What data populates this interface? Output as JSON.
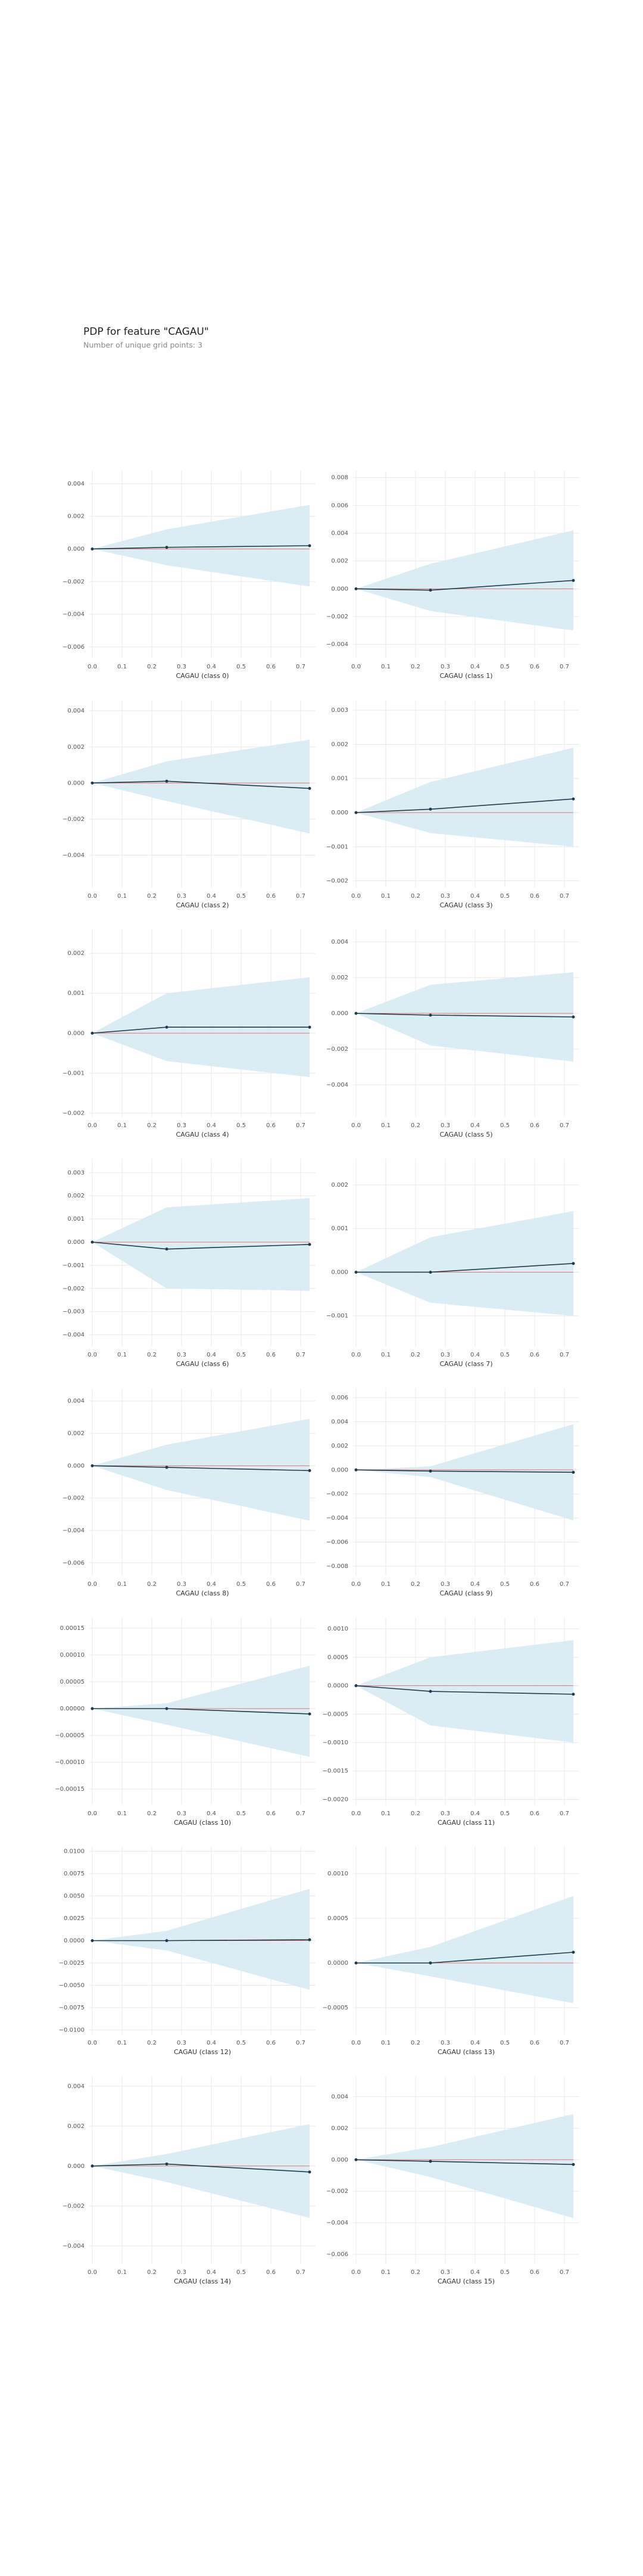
{
  "title": "PDP for feature \"CAGAU\"",
  "subtitle": "Number of unique grid points: 3",
  "style": {
    "line_color": "#1f3b4d",
    "band_color": "#d3eaf2",
    "ref_color": "#e8736c",
    "grid": true
  },
  "chart_data": [
    {
      "type": "pdp",
      "xlabel": "CAGAU (class 0)",
      "x": [
        0,
        0.25,
        0.73
      ],
      "values": [
        0,
        0.0001,
        0.0002
      ],
      "upper": [
        0,
        0.0012,
        0.0027
      ],
      "lower": [
        0,
        -0.001,
        -0.0023
      ],
      "hline": 0,
      "xlim": [
        -0.01,
        0.75
      ],
      "xticks": [
        {
          "value": 0,
          "label": "0.0"
        },
        0.1,
        0.2,
        0.3,
        0.4,
        0.5,
        0.6,
        0.7
      ],
      "ylim": [
        -0.0067,
        0.0048
      ],
      "yticks": [
        {
          "value": -0.006,
          "label": "−0.006"
        },
        {
          "value": -0.004,
          "label": "−0.004"
        },
        {
          "value": -0.002,
          "label": "−0.002"
        },
        {
          "value": 0,
          "label": "0.000"
        },
        {
          "value": 0.002,
          "label": "0.002"
        },
        {
          "value": 0.004,
          "label": "0.004"
        }
      ]
    },
    {
      "type": "pdp",
      "xlabel": "CAGAU (class 1)",
      "x": [
        0,
        0.25,
        0.73
      ],
      "values": [
        0,
        -0.0001,
        0.0006
      ],
      "upper": [
        0,
        0.0018,
        0.0042
      ],
      "lower": [
        0,
        -0.0016,
        -0.003
      ],
      "hline": 0,
      "xlim": [
        -0.01,
        0.75
      ],
      "xticks": [
        {
          "value": 0,
          "label": "0.0"
        },
        0.1,
        0.2,
        0.3,
        0.4,
        0.5,
        0.6,
        0.7
      ],
      "ylim": [
        -0.005,
        0.0085
      ],
      "yticks": [
        {
          "value": -0.004,
          "label": "−0.004"
        },
        {
          "value": -0.002,
          "label": "−0.002"
        },
        {
          "value": 0,
          "label": "0.000"
        },
        {
          "value": 0.002,
          "label": "0.002"
        },
        {
          "value": 0.004,
          "label": "0.004"
        },
        {
          "value": 0.006,
          "label": "0.006"
        },
        {
          "value": 0.008,
          "label": "0.008"
        }
      ]
    },
    {
      "type": "pdp",
      "xlabel": "CAGAU (class 2)",
      "x": [
        0,
        0.25,
        0.73
      ],
      "values": [
        0,
        0.0001,
        -0.0003
      ],
      "upper": [
        0,
        0.0012,
        0.0024
      ],
      "lower": [
        0,
        -0.001,
        -0.0028
      ],
      "hline": 0,
      "xlim": [
        -0.01,
        0.75
      ],
      "xticks": [
        {
          "value": 0,
          "label": "0.0"
        },
        0.1,
        0.2,
        0.3,
        0.4,
        0.5,
        0.6,
        0.7
      ],
      "ylim": [
        -0.0058,
        0.0046
      ],
      "yticks": [
        {
          "value": -0.004,
          "label": "−0.004"
        },
        {
          "value": -0.002,
          "label": "−0.002"
        },
        {
          "value": 0,
          "label": "0.000"
        },
        {
          "value": 0.002,
          "label": "0.002"
        },
        {
          "value": 0.004,
          "label": "0.004"
        }
      ]
    },
    {
      "type": "pdp",
      "xlabel": "CAGAU (class 3)",
      "x": [
        0,
        0.25,
        0.73
      ],
      "values": [
        0,
        0.0001,
        0.0004
      ],
      "upper": [
        0,
        0.0009,
        0.0019
      ],
      "lower": [
        0,
        -0.0006,
        -0.001
      ],
      "hline": 0,
      "xlim": [
        -0.01,
        0.75
      ],
      "xticks": [
        {
          "value": 0,
          "label": "0.0"
        },
        0.1,
        0.2,
        0.3,
        0.4,
        0.5,
        0.6,
        0.7
      ],
      "ylim": [
        -0.0022,
        0.0033
      ],
      "yticks": [
        {
          "value": -0.002,
          "label": "−0.002"
        },
        {
          "value": -0.001,
          "label": "−0.001"
        },
        {
          "value": 0,
          "label": "0.000"
        },
        {
          "value": 0.001,
          "label": "0.001"
        },
        {
          "value": 0.002,
          "label": "0.002"
        },
        {
          "value": 0.003,
          "label": "0.003"
        }
      ]
    },
    {
      "type": "pdp",
      "xlabel": "CAGAU (class 4)",
      "x": [
        0,
        0.25,
        0.73
      ],
      "values": [
        0,
        0.00015,
        0.00015
      ],
      "upper": [
        0,
        0.001,
        0.0014
      ],
      "lower": [
        0,
        -0.0007,
        -0.0011
      ],
      "hline": 0,
      "xlim": [
        -0.01,
        0.75
      ],
      "xticks": [
        {
          "value": 0,
          "label": "0.0"
        },
        0.1,
        0.2,
        0.3,
        0.4,
        0.5,
        0.6,
        0.7
      ],
      "ylim": [
        -0.0021,
        0.0026
      ],
      "yticks": [
        {
          "value": -0.002,
          "label": "−0.002"
        },
        {
          "value": -0.001,
          "label": "−0.001"
        },
        {
          "value": 0,
          "label": "0.000"
        },
        {
          "value": 0.001,
          "label": "0.001"
        },
        {
          "value": 0.002,
          "label": "0.002"
        }
      ]
    },
    {
      "type": "pdp",
      "xlabel": "CAGAU (class 5)",
      "x": [
        0,
        0.25,
        0.73
      ],
      "values": [
        0,
        -0.0001,
        -0.0002
      ],
      "upper": [
        0,
        0.0016,
        0.0023
      ],
      "lower": [
        0,
        -0.0018,
        -0.0027
      ],
      "hline": 0,
      "xlim": [
        -0.01,
        0.75
      ],
      "xticks": [
        {
          "value": 0,
          "label": "0.0"
        },
        0.1,
        0.2,
        0.3,
        0.4,
        0.5,
        0.6,
        0.7
      ],
      "ylim": [
        -0.0058,
        0.0047
      ],
      "yticks": [
        {
          "value": -0.004,
          "label": "−0.004"
        },
        {
          "value": -0.002,
          "label": "−0.002"
        },
        {
          "value": 0,
          "label": "0.000"
        },
        {
          "value": 0.002,
          "label": "0.002"
        },
        {
          "value": 0.004,
          "label": "0.004"
        }
      ]
    },
    {
      "type": "pdp",
      "xlabel": "CAGAU (class 6)",
      "x": [
        0,
        0.25,
        0.73
      ],
      "values": [
        0,
        -0.0003,
        -0.0001
      ],
      "upper": [
        0,
        0.0015,
        0.0019
      ],
      "lower": [
        0,
        -0.002,
        -0.0021
      ],
      "hline": 0,
      "xlim": [
        -0.01,
        0.75
      ],
      "xticks": [
        {
          "value": 0,
          "label": "0.0"
        },
        0.1,
        0.2,
        0.3,
        0.4,
        0.5,
        0.6,
        0.7
      ],
      "ylim": [
        -0.0045,
        0.0036
      ],
      "yticks": [
        {
          "value": -0.004,
          "label": "−0.004"
        },
        {
          "value": -0.003,
          "label": "−0.003"
        },
        {
          "value": -0.002,
          "label": "−0.002"
        },
        {
          "value": -0.001,
          "label": "−0.001"
        },
        {
          "value": 0,
          "label": "0.000"
        },
        {
          "value": 0.001,
          "label": "0.001"
        },
        {
          "value": 0.002,
          "label": "0.002"
        },
        {
          "value": 0.003,
          "label": "0.003"
        }
      ]
    },
    {
      "type": "pdp",
      "xlabel": "CAGAU (class 7)",
      "x": [
        0,
        0.25,
        0.73
      ],
      "values": [
        0,
        0,
        0.0002
      ],
      "upper": [
        0,
        0.0008,
        0.0014
      ],
      "lower": [
        0,
        -0.0007,
        -0.001
      ],
      "hline": 0,
      "xlim": [
        -0.01,
        0.75
      ],
      "xticks": [
        {
          "value": 0,
          "label": "0.0"
        },
        0.1,
        0.2,
        0.3,
        0.4,
        0.5,
        0.6,
        0.7
      ],
      "ylim": [
        -0.0017,
        0.0026
      ],
      "yticks": [
        {
          "value": -0.001,
          "label": "−0.001"
        },
        {
          "value": 0,
          "label": "0.000"
        },
        {
          "value": 0.001,
          "label": "0.001"
        },
        {
          "value": 0.002,
          "label": "0.002"
        }
      ]
    },
    {
      "type": "pdp",
      "xlabel": "CAGAU (class 8)",
      "x": [
        0,
        0.25,
        0.73
      ],
      "values": [
        0,
        -0.0001,
        -0.0003
      ],
      "upper": [
        0,
        0.0013,
        0.0029
      ],
      "lower": [
        0,
        -0.0015,
        -0.0034
      ],
      "hline": 0,
      "xlim": [
        -0.01,
        0.75
      ],
      "xticks": [
        {
          "value": 0,
          "label": "0.0"
        },
        0.1,
        0.2,
        0.3,
        0.4,
        0.5,
        0.6,
        0.7
      ],
      "ylim": [
        -0.0068,
        0.0048
      ],
      "yticks": [
        {
          "value": -0.006,
          "label": "−0.006"
        },
        {
          "value": -0.004,
          "label": "−0.004"
        },
        {
          "value": -0.002,
          "label": "−0.002"
        },
        {
          "value": 0,
          "label": "0.000"
        },
        {
          "value": 0.002,
          "label": "0.002"
        },
        {
          "value": 0.004,
          "label": "0.004"
        }
      ]
    },
    {
      "type": "pdp",
      "xlabel": "CAGAU (class 9)",
      "x": [
        0,
        0.25,
        0.73
      ],
      "values": [
        0,
        -0.0001,
        -0.0002
      ],
      "upper": [
        0,
        0.0003,
        0.0038
      ],
      "lower": [
        0,
        -0.0006,
        -0.0042
      ],
      "hline": 0,
      "xlim": [
        -0.01,
        0.75
      ],
      "xticks": [
        {
          "value": 0,
          "label": "0.0"
        },
        0.1,
        0.2,
        0.3,
        0.4,
        0.5,
        0.6,
        0.7
      ],
      "ylim": [
        -0.0088,
        0.0068
      ],
      "yticks": [
        {
          "value": -0.008,
          "label": "−0.008"
        },
        {
          "value": -0.006,
          "label": "−0.006"
        },
        {
          "value": -0.004,
          "label": "−0.004"
        },
        {
          "value": -0.002,
          "label": "−0.002"
        },
        {
          "value": 0,
          "label": "0.000"
        },
        {
          "value": 0.002,
          "label": "0.002"
        },
        {
          "value": 0.004,
          "label": "0.004"
        },
        {
          "value": 0.006,
          "label": "0.006"
        }
      ]
    },
    {
      "type": "pdp",
      "xlabel": "CAGAU (class 10)",
      "x": [
        0,
        0.25,
        0.73
      ],
      "values": [
        0,
        0,
        -1e-05
      ],
      "upper": [
        0,
        1e-05,
        8e-05
      ],
      "lower": [
        0,
        -3e-05,
        -9e-05
      ],
      "hline": 0,
      "xlim": [
        -0.01,
        0.75
      ],
      "xticks": [
        {
          "value": 0,
          "label": "0.0"
        },
        0.1,
        0.2,
        0.3,
        0.4,
        0.5,
        0.6,
        0.7
      ],
      "ylim": [
        -0.00018,
        0.00017
      ],
      "yticks": [
        {
          "value": -0.00015,
          "label": "−0.00015"
        },
        {
          "value": -0.0001,
          "label": "−0.00010"
        },
        {
          "value": -5e-05,
          "label": "−0.00005"
        },
        {
          "value": 0,
          "label": "0.00000"
        },
        {
          "value": 5e-05,
          "label": "0.00005"
        },
        {
          "value": 0.0001,
          "label": "0.00010"
        },
        {
          "value": 0.00015,
          "label": "0.00015"
        }
      ]
    },
    {
      "type": "pdp",
      "xlabel": "CAGAU (class 11)",
      "x": [
        0,
        0.25,
        0.73
      ],
      "values": [
        0,
        -0.0001,
        -0.00015
      ],
      "upper": [
        0,
        0.0005,
        0.0008
      ],
      "lower": [
        0,
        -0.0007,
        -0.001
      ],
      "hline": 0,
      "xlim": [
        -0.01,
        0.75
      ],
      "xticks": [
        {
          "value": 0,
          "label": "0.0"
        },
        0.1,
        0.2,
        0.3,
        0.4,
        0.5,
        0.6,
        0.7
      ],
      "ylim": [
        -0.0021,
        0.0012
      ],
      "yticks": [
        {
          "value": -0.002,
          "label": "−0.0020"
        },
        {
          "value": -0.0015,
          "label": "−0.0015"
        },
        {
          "value": -0.001,
          "label": "−0.0010"
        },
        {
          "value": -0.0005,
          "label": "−0.0005"
        },
        {
          "value": 0,
          "label": "0.0000"
        },
        {
          "value": 0.0005,
          "label": "0.0005"
        },
        {
          "value": 0.001,
          "label": "0.0010"
        }
      ]
    },
    {
      "type": "pdp",
      "xlabel": "CAGAU (class 12)",
      "x": [
        0,
        0.25,
        0.73
      ],
      "values": [
        0,
        0,
        0.0001
      ],
      "upper": [
        0,
        0.0011,
        0.0058
      ],
      "lower": [
        0,
        -0.0011,
        -0.0055
      ],
      "hline": 0,
      "xlim": [
        -0.01,
        0.75
      ],
      "xticks": [
        {
          "value": 0,
          "label": "0.0"
        },
        0.1,
        0.2,
        0.3,
        0.4,
        0.5,
        0.6,
        0.7
      ],
      "ylim": [
        -0.0105,
        0.0105
      ],
      "yticks": [
        {
          "value": -0.01,
          "label": "−0.0100"
        },
        {
          "value": -0.0075,
          "label": "−0.0075"
        },
        {
          "value": -0.005,
          "label": "−0.0050"
        },
        {
          "value": -0.0025,
          "label": "−0.0025"
        },
        {
          "value": 0,
          "label": "0.0000"
        },
        {
          "value": 0.0025,
          "label": "0.0025"
        },
        {
          "value": 0.005,
          "label": "0.0050"
        },
        {
          "value": 0.0075,
          "label": "0.0075"
        },
        {
          "value": 0.01,
          "label": "0.0100"
        }
      ]
    },
    {
      "type": "pdp",
      "xlabel": "CAGAU (class 13)",
      "x": [
        0,
        0.25,
        0.73
      ],
      "values": [
        0,
        0,
        0.00012
      ],
      "upper": [
        0,
        0.00018,
        0.00075
      ],
      "lower": [
        0,
        -0.00015,
        -0.00045
      ],
      "hline": 0,
      "xlim": [
        -0.01,
        0.75
      ],
      "xticks": [
        {
          "value": 0,
          "label": "0.0"
        },
        0.1,
        0.2,
        0.3,
        0.4,
        0.5,
        0.6,
        0.7
      ],
      "ylim": [
        -0.0008,
        0.0013
      ],
      "yticks": [
        {
          "value": -0.0005,
          "label": "−0.0005"
        },
        {
          "value": 0,
          "label": "0.0000"
        },
        {
          "value": 0.0005,
          "label": "0.0005"
        },
        {
          "value": 0.001,
          "label": "0.0010"
        }
      ]
    },
    {
      "type": "pdp",
      "xlabel": "CAGAU (class 14)",
      "x": [
        0,
        0.25,
        0.73
      ],
      "values": [
        0,
        0.0001,
        -0.0003
      ],
      "upper": [
        0,
        0.0006,
        0.0021
      ],
      "lower": [
        0,
        -0.0008,
        -0.0026
      ],
      "hline": 0,
      "xlim": [
        -0.01,
        0.75
      ],
      "xticks": [
        {
          "value": 0,
          "label": "0.0"
        },
        0.1,
        0.2,
        0.3,
        0.4,
        0.5,
        0.6,
        0.7
      ],
      "ylim": [
        -0.0049,
        0.0045
      ],
      "yticks": [
        {
          "value": -0.004,
          "label": "−0.004"
        },
        {
          "value": -0.002,
          "label": "−0.002"
        },
        {
          "value": 0,
          "label": "0.000"
        },
        {
          "value": 0.002,
          "label": "0.002"
        },
        {
          "value": 0.004,
          "label": "0.004"
        }
      ]
    },
    {
      "type": "pdp",
      "xlabel": "CAGAU (class 15)",
      "x": [
        0,
        0.25,
        0.73
      ],
      "values": [
        0,
        -0.0001,
        -0.0003
      ],
      "upper": [
        0,
        0.0008,
        0.0029
      ],
      "lower": [
        0,
        -0.0011,
        -0.0037
      ],
      "hline": 0,
      "xlim": [
        -0.01,
        0.75
      ],
      "xticks": [
        {
          "value": 0,
          "label": "0.0"
        },
        0.1,
        0.2,
        0.3,
        0.4,
        0.5,
        0.6,
        0.7
      ],
      "ylim": [
        -0.0066,
        0.0053
      ],
      "yticks": [
        {
          "value": -0.006,
          "label": "−0.006"
        },
        {
          "value": -0.004,
          "label": "−0.004"
        },
        {
          "value": -0.002,
          "label": "−0.002"
        },
        {
          "value": 0,
          "label": "0.000"
        },
        {
          "value": 0.002,
          "label": "0.002"
        },
        {
          "value": 0.004,
          "label": "0.004"
        }
      ]
    }
  ]
}
